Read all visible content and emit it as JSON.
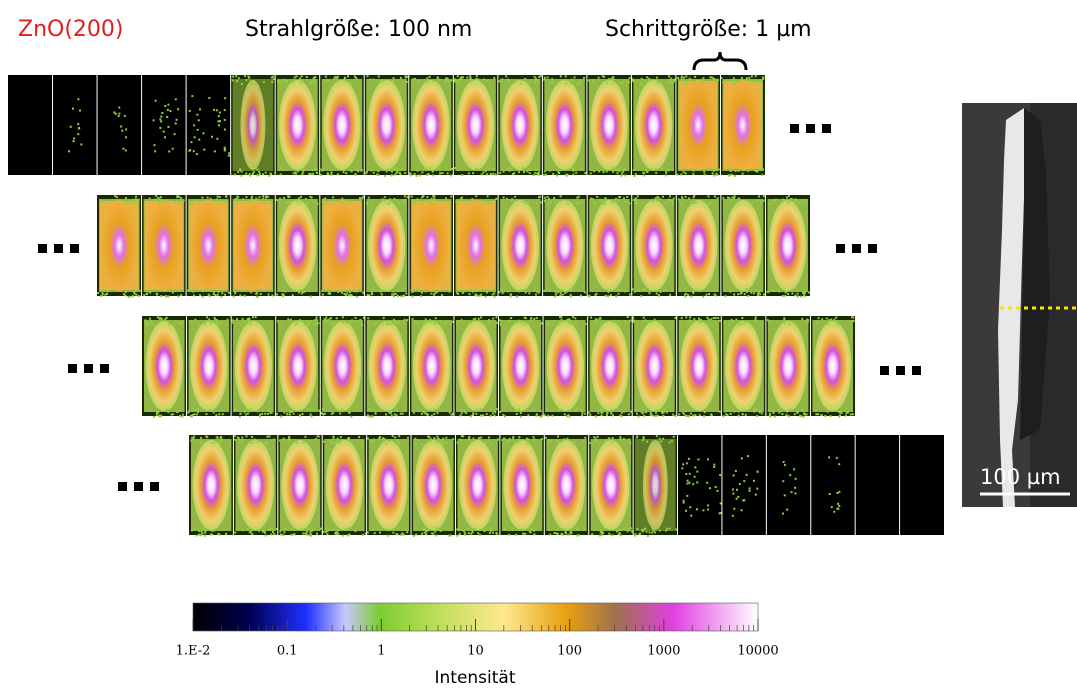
{
  "header": {
    "material": "ZnO(200)",
    "beam_size": "Strahlgröße: 100 nm",
    "step_size": "Schrittgröße: 1 µm"
  },
  "colorbar": {
    "label": "Intensität",
    "log": true,
    "lim": [
      0.01,
      10000
    ],
    "ticks": [
      {
        "value": 0.01,
        "label": "1.E-2"
      },
      0.1,
      1,
      10,
      100,
      1000,
      10000
    ]
  },
  "sem_image": {
    "scale_bar": "100 µm"
  }
}
